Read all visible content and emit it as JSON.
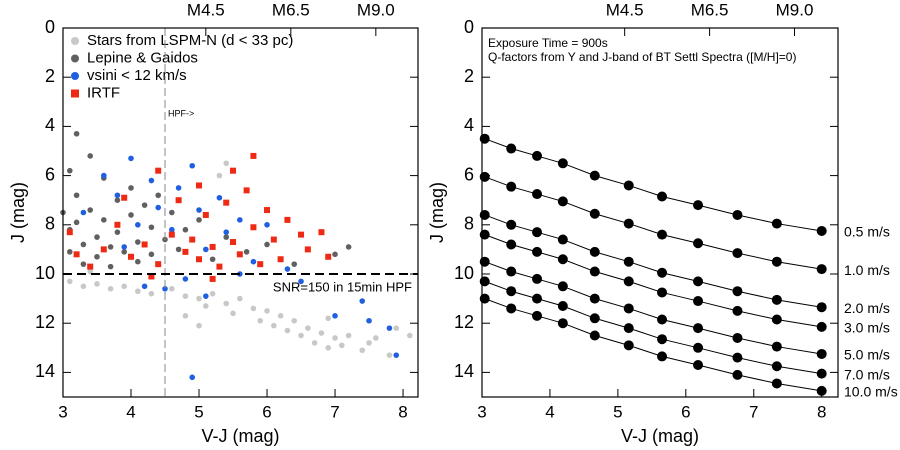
{
  "chart_data": [
    {
      "type": "scatter",
      "x_label": "V-J (mag)",
      "y_label": "J (mag)",
      "xlim": [
        3,
        8.22
      ],
      "xticks": [
        3,
        4,
        5,
        6,
        7,
        8
      ],
      "ylim": [
        15,
        0
      ],
      "yticks": [
        0,
        2,
        4,
        6,
        8,
        10,
        12,
        14
      ],
      "x2ticks": [
        {
          "value": 5.1,
          "label": "M4.5"
        },
        {
          "value": 6.35,
          "label": "M6.5"
        },
        {
          "value": 7.6,
          "label": "M9.0"
        }
      ],
      "reference_lines": {
        "x": 4.5,
        "y": 10
      },
      "annotations": [
        "HPF->",
        "SNR=150 in 15min HPF"
      ],
      "legend": "upper left",
      "series": [
        {
          "name": "Stars from LSPM-N (d < 33 pc)",
          "color": "#c8c8c8",
          "marker": "circle",
          "x": [
            3.1,
            3.3,
            3.5,
            3.7,
            3.9,
            4.1,
            4.3,
            4.6,
            4.8,
            5.0,
            5.1,
            5.2,
            5.4,
            5.5,
            5.6,
            5.8,
            5.9,
            6.0,
            6.1,
            6.2,
            6.3,
            6.4,
            6.5,
            6.6,
            6.7,
            6.8,
            6.9,
            7.0,
            7.1,
            7.2,
            7.4,
            7.5,
            7.6,
            7.8,
            7.9,
            8.1,
            5.3,
            5.4,
            4.8,
            5.0,
            3.4,
            6.9
          ],
          "values": [
            10.3,
            10.5,
            10.4,
            10.6,
            10.5,
            10.7,
            10.8,
            10.6,
            10.9,
            11.0,
            11.3,
            10.8,
            11.2,
            11.6,
            11.0,
            11.4,
            11.9,
            11.5,
            12.1,
            11.7,
            12.3,
            11.9,
            12.5,
            12.2,
            12.8,
            12.4,
            13.0,
            12.6,
            12.9,
            12.5,
            13.1,
            12.8,
            12.6,
            13.3,
            12.2,
            12.5,
            6.0,
            5.5,
            11.7,
            12.1,
            9.9,
            11.8
          ]
        },
        {
          "name": "Lepine & Gaidos",
          "color": "#606060",
          "marker": "circle",
          "x": [
            3.0,
            3.1,
            3.1,
            3.2,
            3.2,
            3.3,
            3.3,
            3.4,
            3.4,
            3.5,
            3.5,
            3.6,
            3.6,
            3.7,
            3.7,
            3.8,
            3.8,
            3.9,
            4.0,
            4.0,
            4.1,
            4.1,
            4.2,
            4.3,
            4.3,
            4.4,
            4.5,
            4.6,
            4.7,
            4.8,
            5.0,
            5.2,
            5.4,
            5.7,
            6.0,
            6.4,
            6.8,
            7.0,
            7.2,
            3.2,
            3.1
          ],
          "values": [
            7.5,
            8.2,
            9.1,
            6.8,
            7.9,
            8.8,
            9.6,
            5.2,
            7.4,
            8.5,
            9.3,
            6.1,
            7.8,
            8.9,
            9.7,
            7.0,
            8.3,
            9.1,
            6.5,
            7.6,
            8.7,
            9.5,
            7.2,
            8.1,
            9.2,
            6.8,
            8.6,
            7.5,
            9.0,
            8.2,
            7.8,
            9.4,
            8.5,
            9.1,
            8.8,
            9.6,
            8.3,
            9.2,
            8.9,
            4.3,
            5.8
          ]
        },
        {
          "name": "vsini < 12 km/s",
          "color": "#1f5fe0",
          "marker": "circle",
          "x": [
            3.3,
            3.6,
            3.8,
            4.0,
            4.1,
            4.3,
            4.4,
            4.6,
            4.7,
            4.9,
            5.0,
            5.1,
            5.3,
            5.4,
            5.6,
            5.8,
            6.0,
            6.3,
            4.5,
            4.8,
            5.1,
            5.6,
            6.5,
            7.4,
            7.5,
            7.8,
            7.9,
            7.0,
            4.9,
            4.2,
            3.9
          ],
          "values": [
            7.5,
            6.0,
            6.8,
            5.3,
            8.0,
            6.2,
            7.3,
            8.2,
            6.5,
            5.6,
            7.4,
            9.0,
            6.9,
            8.3,
            7.8,
            9.5,
            8.0,
            9.8,
            10.6,
            10.2,
            10.9,
            10.0,
            10.3,
            11.1,
            11.9,
            12.2,
            13.3,
            11.7,
            14.2,
            10.5,
            8.9
          ]
        },
        {
          "name": "IRTF",
          "color": "#ee2a14",
          "marker": "square",
          "x": [
            3.1,
            3.2,
            3.4,
            3.6,
            3.8,
            4.0,
            4.2,
            4.4,
            4.6,
            4.7,
            4.8,
            4.9,
            5.0,
            5.0,
            5.1,
            5.2,
            5.3,
            5.4,
            5.5,
            5.6,
            5.7,
            5.8,
            5.9,
            6.0,
            6.1,
            6.2,
            6.3,
            6.5,
            6.6,
            6.8,
            6.9,
            5.8,
            5.5,
            4.4,
            3.9,
            4.3,
            5.2
          ],
          "values": [
            8.3,
            9.2,
            9.7,
            9.0,
            8.0,
            9.3,
            8.8,
            9.6,
            8.4,
            7.0,
            9.1,
            8.6,
            6.4,
            9.4,
            7.6,
            8.9,
            9.7,
            7.1,
            8.7,
            9.2,
            6.6,
            8.1,
            9.6,
            7.4,
            8.6,
            9.4,
            7.8,
            8.4,
            9.0,
            8.3,
            9.3,
            5.2,
            5.8,
            5.8,
            6.9,
            10.1,
            10.2
          ]
        }
      ]
    },
    {
      "type": "line",
      "x_label": "V-J (mag)",
      "y_label": "J (mag)",
      "xlim": [
        3,
        8.24
      ],
      "xticks": [
        3,
        4,
        5,
        6,
        7,
        8
      ],
      "ylim": [
        15,
        0
      ],
      "yticks": [
        0,
        2,
        4,
        6,
        8,
        10,
        12,
        14
      ],
      "x2ticks": [
        {
          "value": 5.1,
          "label": "M4.5"
        },
        {
          "value": 6.35,
          "label": "M6.5"
        },
        {
          "value": 7.6,
          "label": "M9.0"
        }
      ],
      "annotations": [
        "Exposure Time = 900s",
        "Q-factors from Y and J-band of BT Settl Spectra ([M/H]=0)"
      ],
      "x": [
        3.04,
        3.43,
        3.81,
        4.19,
        4.66,
        5.16,
        5.65,
        6.18,
        6.76,
        7.34,
        8.0
      ],
      "series": [
        {
          "name": "0.5 m/s",
          "color": "#000000",
          "values": [
            4.5,
            4.9,
            5.2,
            5.5,
            6.0,
            6.4,
            6.85,
            7.2,
            7.6,
            7.95,
            8.25
          ]
        },
        {
          "name": "1.0 m/s",
          "color": "#000000",
          "values": [
            6.05,
            6.45,
            6.75,
            7.05,
            7.55,
            7.95,
            8.4,
            8.75,
            9.15,
            9.5,
            9.8
          ]
        },
        {
          "name": "2.0 m/s",
          "color": "#000000",
          "values": [
            7.6,
            8.0,
            8.3,
            8.6,
            9.1,
            9.5,
            9.95,
            10.3,
            10.7,
            11.05,
            11.35
          ]
        },
        {
          "name": "3.0 m/s",
          "color": "#000000",
          "values": [
            8.4,
            8.8,
            9.1,
            9.4,
            9.9,
            10.3,
            10.75,
            11.1,
            11.5,
            11.85,
            12.15
          ]
        },
        {
          "name": "5.0 m/s",
          "color": "#000000",
          "values": [
            9.5,
            9.9,
            10.2,
            10.5,
            11.0,
            11.4,
            11.85,
            12.2,
            12.6,
            12.95,
            13.25
          ]
        },
        {
          "name": "7.0 m/s",
          "color": "#000000",
          "values": [
            10.3,
            10.7,
            11.0,
            11.3,
            11.8,
            12.2,
            12.65,
            13.0,
            13.4,
            13.75,
            14.05
          ]
        },
        {
          "name": "10.0 m/s",
          "color": "#000000",
          "values": [
            11.0,
            11.4,
            11.7,
            12.0,
            12.5,
            12.9,
            13.35,
            13.7,
            14.1,
            14.45,
            14.75
          ]
        }
      ]
    }
  ]
}
